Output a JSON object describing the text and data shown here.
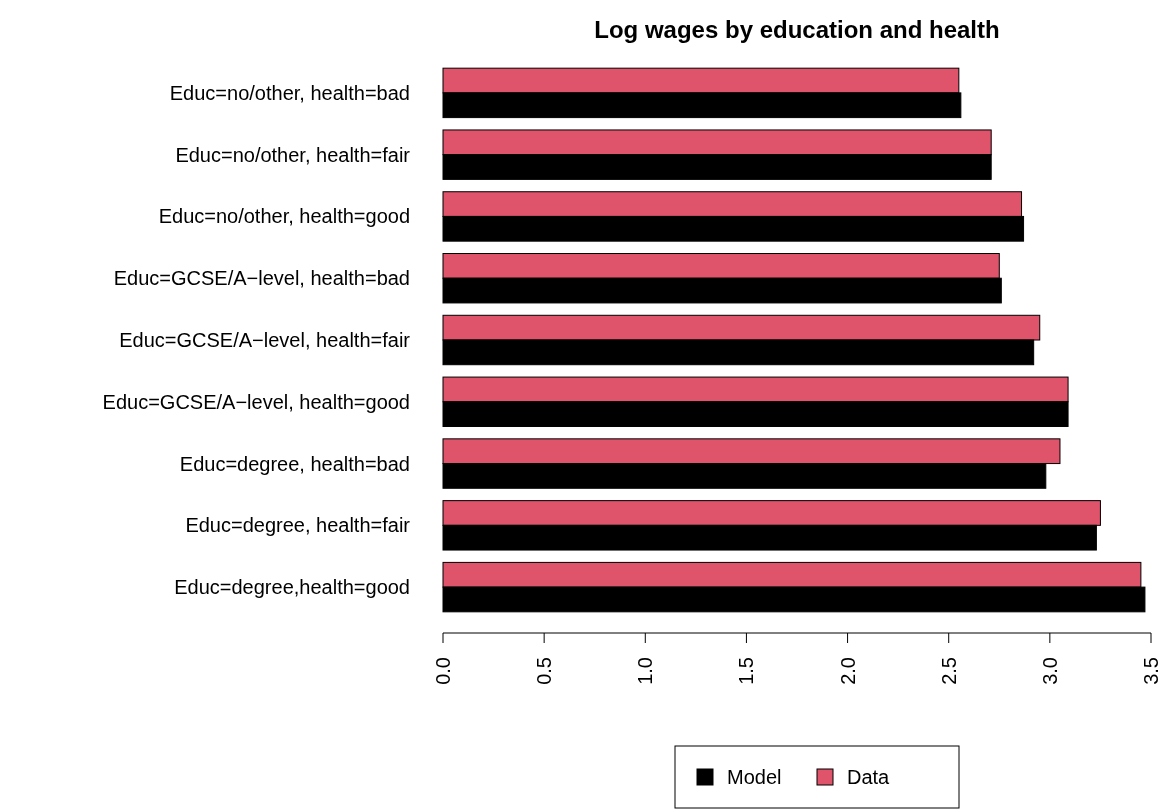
{
  "chart_data": {
    "type": "bar",
    "orientation": "horizontal",
    "title": "Log wages by education and health",
    "categories": [
      "Educ=no/other, health=bad",
      "Educ=no/other, health=fair",
      "Educ=no/other, health=good",
      "Educ=GCSE/A−level, health=bad",
      "Educ=GCSE/A−level, health=fair",
      "Educ=GCSE/A−level, health=good",
      "Educ=degree, health=bad",
      "Educ=degree, health=fair",
      "Educ=degree,health=good"
    ],
    "series": [
      {
        "name": "Data",
        "color": "#df536b",
        "values": [
          2.55,
          2.71,
          2.86,
          2.75,
          2.95,
          3.09,
          3.05,
          3.25,
          3.45
        ]
      },
      {
        "name": "Model",
        "color": "#000000",
        "values": [
          2.56,
          2.71,
          2.87,
          2.76,
          2.92,
          3.09,
          2.98,
          3.23,
          3.47
        ]
      }
    ],
    "xlim": [
      0,
      3.5
    ],
    "xticks": [
      {
        "value": 0,
        "label": "0.0"
      },
      {
        "value": 0.5,
        "label": "0.5"
      },
      {
        "value": 1,
        "label": "1.0"
      },
      {
        "value": 1.5,
        "label": "1.5"
      },
      {
        "value": 2,
        "label": "2.0"
      },
      {
        "value": 2.5,
        "label": "2.5"
      },
      {
        "value": 3,
        "label": "3.0"
      },
      {
        "value": 3.5,
        "label": "3.5"
      }
    ],
    "legend": "bottom",
    "grid": false
  }
}
